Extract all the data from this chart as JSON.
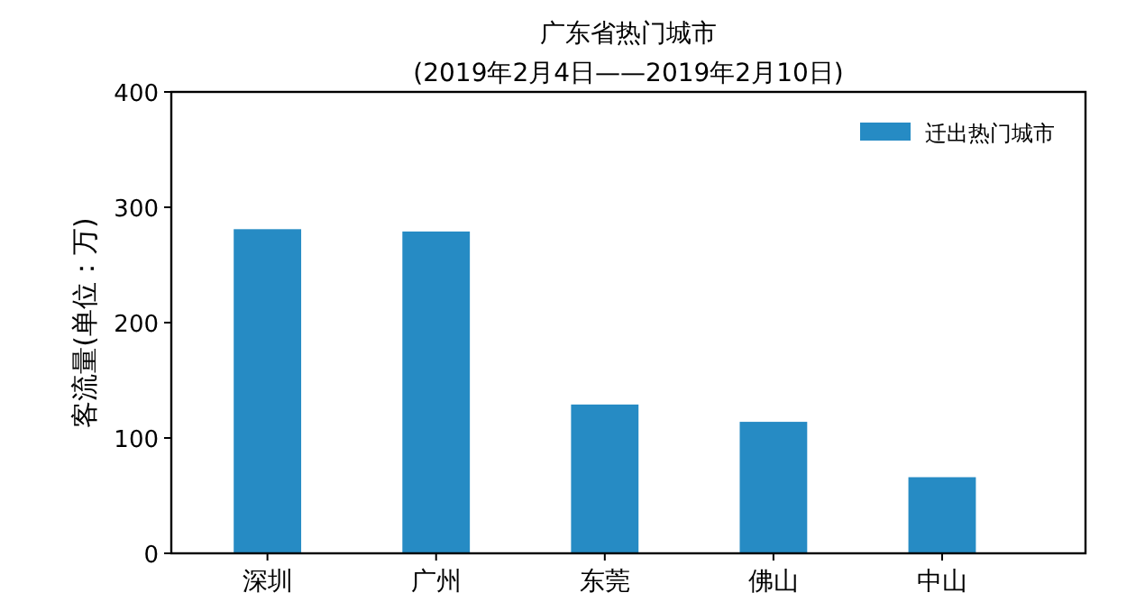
{
  "chart_data": {
    "type": "bar",
    "title": "广东省热门城市",
    "subtitle": "(2019年2月4日——2019年2月10日)",
    "ylabel": "客流量(单位：万)",
    "categories": [
      "深圳",
      "广州",
      "东莞",
      "佛山",
      "中山"
    ],
    "series": [
      {
        "name": "迁出热门城市",
        "color": "#268bc4",
        "values": [
          281,
          279,
          129,
          114,
          66
        ]
      }
    ],
    "ylim": [
      0,
      400
    ],
    "yticks": [
      0,
      100,
      200,
      300,
      400
    ],
    "legend": "top right",
    "grid": false
  }
}
